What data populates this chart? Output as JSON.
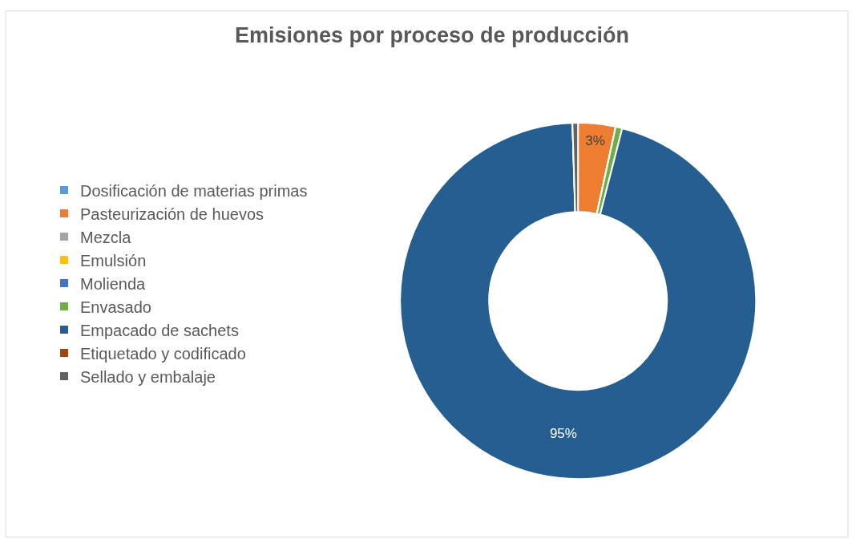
{
  "chart_data": {
    "type": "donut",
    "title": "Emisiones por proceso de producción",
    "categories": [
      "Dosificación de materias primas",
      "Pasteurización de huevos",
      "Mezcla",
      "Emulsión",
      "Molienda",
      "Envasado",
      "Empacado de sachets",
      "Etiquetado y codificado",
      "Sellado y embalaje"
    ],
    "values": [
      0,
      3.4,
      0,
      0,
      0,
      0.6,
      95.5,
      0,
      0.5
    ],
    "value_labels": [
      null,
      "3%",
      null,
      null,
      null,
      null,
      "95%",
      null,
      null
    ],
    "colors": [
      "#5b9bd5",
      "#ed7d31",
      "#a5a5a5",
      "#ffc000",
      "#4472c4",
      "#70ad47",
      "#255e91",
      "#9e480e",
      "#636363"
    ],
    "legend": "left"
  }
}
